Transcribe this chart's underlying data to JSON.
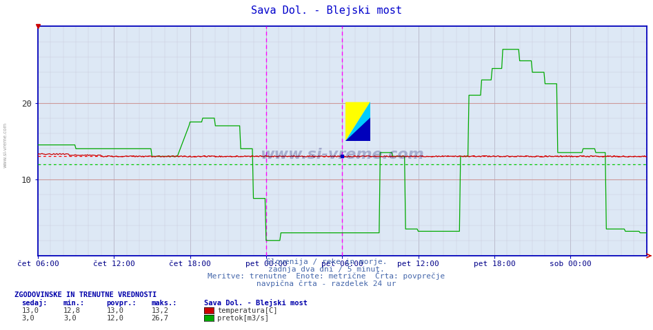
{
  "title": "Sava Dol. - Blejski most",
  "title_color": "#0000cc",
  "bg_color": "#ffffff",
  "plot_bg_color": "#dde8f5",
  "grid_color_h_major": "#cc9999",
  "grid_color_minor": "#ccccdd",
  "ylim": [
    0,
    30
  ],
  "ytick_vals": [
    10,
    20
  ],
  "xlabel_color": "#000088",
  "xtick_labels": [
    "čet 06:00",
    "čet 12:00",
    "čet 18:00",
    "pet 00:00",
    "pet 06:00",
    "pet 12:00",
    "pet 18:00",
    "sob 00:00"
  ],
  "temp_color": "#cc0000",
  "flow_color": "#00aa00",
  "avg_temp_color": "#ff0000",
  "avg_flow_color": "#00cc00",
  "vline_color": "#ff00ff",
  "temp_avg": 13.0,
  "flow_avg": 12.0,
  "note_line1": "Slovenija / reke in morje.",
  "note_line2": "zadnja dva dni / 5 minut.",
  "note_line3": "Meritve: trenutne  Enote: metrične  Črta: povprečje",
  "note_line4": "navpična črta - razdelek 24 ur",
  "table_header": "ZGODOVINSKE IN TRENUTNE VREDNOSTI",
  "col_headers": [
    "sedaj:",
    "min.:",
    "povpr.:",
    "maks.:"
  ],
  "row1": [
    "13,0",
    "12,8",
    "13,0",
    "13,2"
  ],
  "row2": [
    "3,0",
    "3,0",
    "12,0",
    "26,7"
  ],
  "legend_label1": "temperatura[C]",
  "legend_label2": "pretok[m3/s]",
  "legend_station": "Sava Dol. - Blejski most",
  "legend_color1": "#cc0000",
  "legend_color2": "#00aa00",
  "spine_color": "#0000bb",
  "note_color": "#4466aa",
  "table_color": "#0000aa"
}
